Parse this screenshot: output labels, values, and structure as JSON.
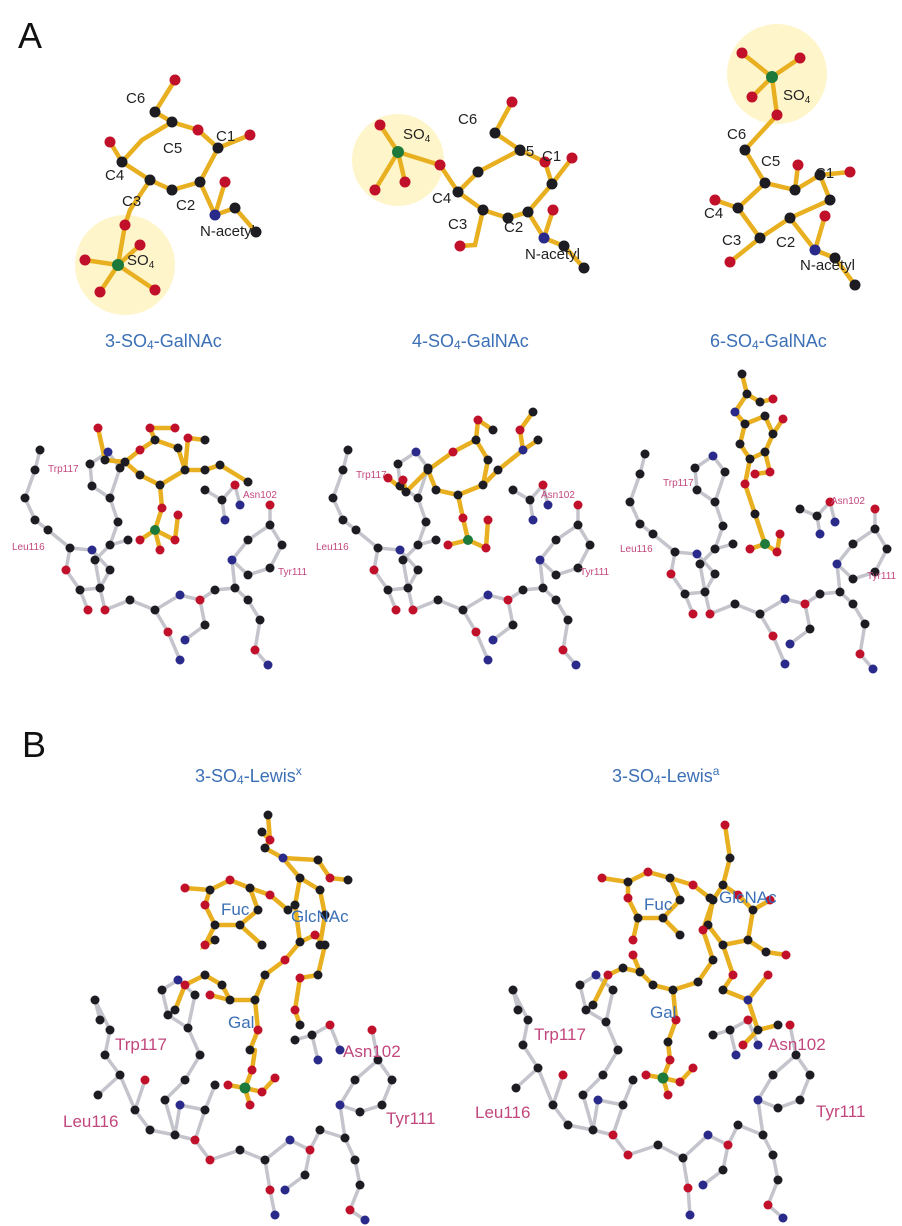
{
  "panels": {
    "A": {
      "letter": "A",
      "molecules": [
        {
          "title_main": "3-SO",
          "title_sub": "4",
          "title_rest": "-GalNAc",
          "labels": {
            "c6": "C6",
            "c5": "C5",
            "c1": "C1",
            "c4": "C4",
            "c3": "C3",
            "c2": "C2",
            "nacetyl": "N-acetyl",
            "so4": "SO",
            "so4_sub": "4"
          }
        },
        {
          "title_main": "4-SO",
          "title_sub": "4",
          "title_rest": "-GalNAc",
          "labels": {
            "c6": "C6",
            "c5": "C5",
            "c1": "C1",
            "c4": "C4",
            "c3": "C3",
            "c2": "C2",
            "nacetyl": "N-acetyl",
            "so4": "SO",
            "so4_sub": "4"
          }
        },
        {
          "title_main": "6-SO",
          "title_sub": "4",
          "title_rest": "-GalNAc",
          "labels": {
            "c6": "C6",
            "c5": "C5",
            "c1": "C1",
            "c4": "C4",
            "c3": "C3",
            "c2": "C2",
            "nacetyl": "N-acetyl",
            "so4": "SO",
            "so4_sub": "4"
          }
        }
      ],
      "residues": [
        "Trp117",
        "Asn102",
        "Leu116",
        "Tyr111"
      ]
    },
    "B": {
      "letter": "B",
      "structures": [
        {
          "title_main": "3-SO",
          "title_sub": "4",
          "title_rest": "-Lewis",
          "title_sup": "x",
          "rings": [
            "Fuc",
            "GlcNAc",
            "Gal"
          ]
        },
        {
          "title_main": "3-SO",
          "title_sub": "4",
          "title_rest": "-Lewis",
          "title_sup": "a",
          "rings": [
            "Fuc",
            "GlcNAc",
            "Gal"
          ]
        }
      ],
      "residues": [
        "Trp117",
        "Asn102",
        "Leu116",
        "Tyr111"
      ]
    }
  },
  "colors": {
    "sugar_bond": "#e8b020",
    "protein_bond": "#c4c4cc",
    "carbon": "#1c1c22",
    "oxygen": "#c0102a",
    "nitrogen": "#2a2a8a",
    "sulfur": "#1d7a3a",
    "title_blue": "#3b6fb6",
    "residue_pink": "#c2477d",
    "sulfate_halo": "#fff1b8"
  }
}
